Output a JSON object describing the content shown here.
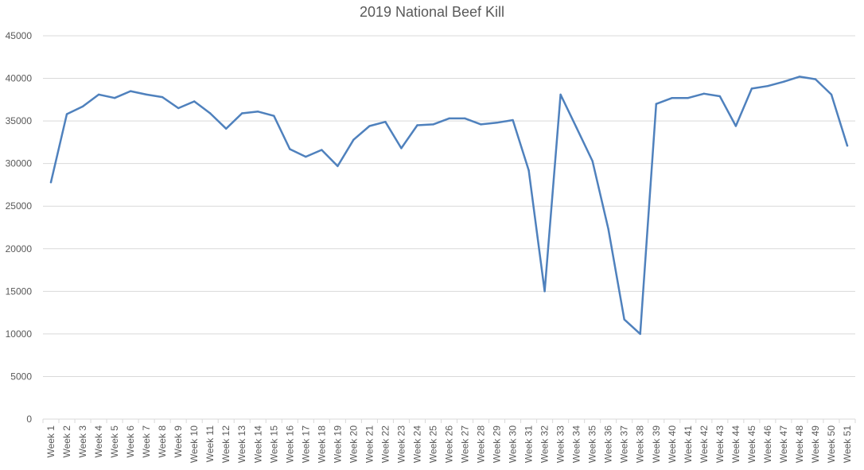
{
  "chart_data": {
    "type": "line",
    "title": "2019 National Beef Kill",
    "xlabel": "",
    "ylabel": "",
    "ylim": [
      0,
      45000
    ],
    "yticks": [
      0,
      5000,
      10000,
      15000,
      20000,
      25000,
      30000,
      35000,
      40000,
      45000
    ],
    "grid": true,
    "legend": "none",
    "categories": [
      "Week 1",
      "Week 2",
      "Week 3",
      "Week 4",
      "Week 5",
      "Week 6",
      "Week 7",
      "Week 8",
      "Week 9",
      "Week 10",
      "Week 11",
      "Week 12",
      "Week 13",
      "Week 14",
      "Week 15",
      "Week 16",
      "Week 17",
      "Week 18",
      "Week 19",
      "Week 20",
      "Week 21",
      "Week 22",
      "Week 23",
      "Week 24",
      "Week 25",
      "Week 26",
      "Week 27",
      "Week 28",
      "Week 29",
      "Week 30",
      "Week 31",
      "Week 32",
      "Week 33",
      "Week 34",
      "Week 35",
      "Week 36",
      "Week 37",
      "Week 38",
      "Week 39",
      "Week 40",
      "Week 41",
      "Week 42",
      "Week 43",
      "Week 44",
      "Week 45",
      "Week 46",
      "Week 47",
      "Week 48",
      "Week 49",
      "Week 50",
      "Week 51"
    ],
    "values": [
      27800,
      35800,
      36700,
      38100,
      37700,
      38500,
      38100,
      37800,
      36500,
      37300,
      35900,
      34100,
      35900,
      36100,
      35600,
      31700,
      30800,
      31600,
      29700,
      32800,
      34400,
      34900,
      31800,
      34500,
      34600,
      35300,
      35300,
      34600,
      34800,
      35100,
      29200,
      15000,
      38100,
      34200,
      30300,
      22300,
      11700,
      10000,
      37000,
      37700,
      37700,
      38200,
      37900,
      34400,
      38800,
      39100,
      39600,
      40200,
      39900,
      38100,
      32100
    ],
    "line_color": "#4f81bd",
    "grid_color": "#d9d9d9",
    "text_color": "#595959"
  }
}
